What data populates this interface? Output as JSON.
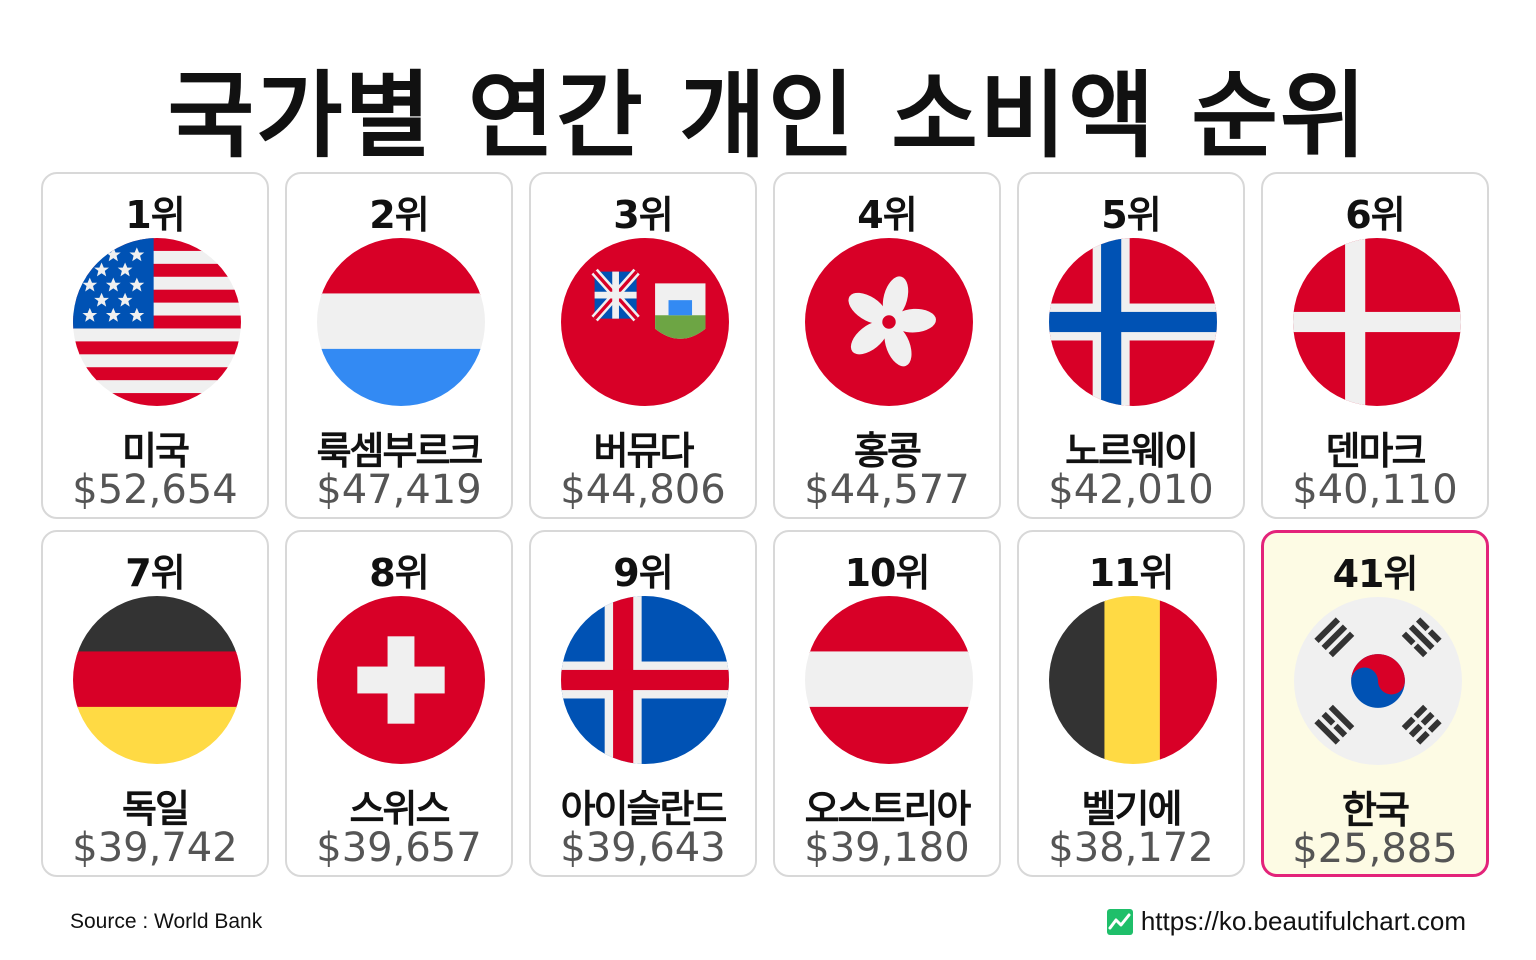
{
  "title": "국가별 연간 개인 소비액 순위",
  "source": "Source : World Bank",
  "website": "https://ko.beautifulchart.com",
  "colors": {
    "highlight_border": "#e3237a",
    "highlight_bg": "#fdfbe4",
    "logo_green": "#1fbf6a"
  },
  "chart_data": {
    "type": "table",
    "title": "국가별 연간 개인 소비액 순위",
    "columns": [
      "rank",
      "country",
      "value"
    ],
    "rows": [
      {
        "rank": "1위",
        "country": "미국",
        "value": "$52,654",
        "amount": 52654,
        "flag": "usa-flag-icon"
      },
      {
        "rank": "2위",
        "country": "룩셈부르크",
        "value": "$47,419",
        "amount": 47419,
        "flag": "luxembourg-flag-icon"
      },
      {
        "rank": "3위",
        "country": "버뮤다",
        "value": "$44,806",
        "amount": 44806,
        "flag": "bermuda-flag-icon"
      },
      {
        "rank": "4위",
        "country": "홍콩",
        "value": "$44,577",
        "amount": 44577,
        "flag": "hong-kong-flag-icon"
      },
      {
        "rank": "5위",
        "country": "노르웨이",
        "value": "$42,010",
        "amount": 42010,
        "flag": "norway-flag-icon"
      },
      {
        "rank": "6위",
        "country": "덴마크",
        "value": "$40,110",
        "amount": 40110,
        "flag": "denmark-flag-icon"
      },
      {
        "rank": "7위",
        "country": "독일",
        "value": "$39,742",
        "amount": 39742,
        "flag": "germany-flag-icon"
      },
      {
        "rank": "8위",
        "country": "스위스",
        "value": "$39,657",
        "amount": 39657,
        "flag": "switzerland-flag-icon"
      },
      {
        "rank": "9위",
        "country": "아이슬란드",
        "value": "$39,643",
        "amount": 39643,
        "flag": "iceland-flag-icon"
      },
      {
        "rank": "10위",
        "country": "오스트리아",
        "value": "$39,180",
        "amount": 39180,
        "flag": "austria-flag-icon"
      },
      {
        "rank": "11위",
        "country": "벨기에",
        "value": "$38,172",
        "amount": 38172,
        "flag": "belgium-flag-icon"
      },
      {
        "rank": "41위",
        "country": "한국",
        "value": "$25,885",
        "amount": 25885,
        "flag": "south-korea-flag-icon",
        "highlight": true
      }
    ]
  }
}
